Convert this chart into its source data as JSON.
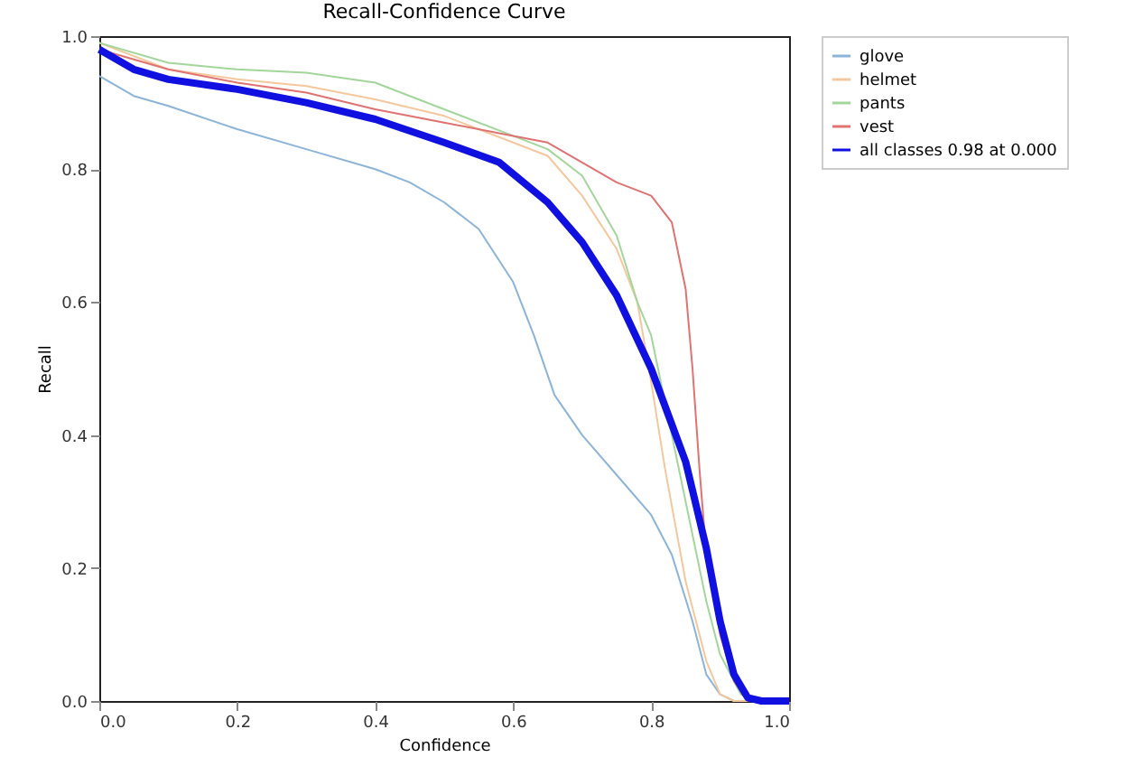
{
  "chart_data": {
    "type": "line",
    "title": "Recall-Confidence Curve",
    "xlabel": "Confidence",
    "ylabel": "Recall",
    "xlim": [
      0,
      1
    ],
    "ylim": [
      0,
      1
    ],
    "xticks": [
      {
        "value": 0,
        "label": "0.0"
      },
      0.2,
      0.4,
      0.6,
      0.8,
      {
        "value": 1,
        "label": "1.0"
      }
    ],
    "yticks": [
      {
        "value": 0,
        "label": "0.0"
      },
      0.2,
      0.4,
      0.6,
      0.8,
      {
        "value": 1,
        "label": "1.0"
      }
    ],
    "grid": false,
    "legend": "right",
    "marker": "none",
    "line_style": "solid",
    "series": [
      {
        "name": "glove",
        "color": "#8cb4d8",
        "x": [
          0,
          0.05,
          0.1,
          0.2,
          0.3,
          0.4,
          0.45,
          0.5,
          0.55,
          0.6,
          0.63,
          0.66,
          0.7,
          0.75,
          0.8,
          0.83,
          0.86,
          0.88,
          0.9,
          0.92,
          1.0
        ],
        "values": [
          0.94,
          0.91,
          0.895,
          0.86,
          0.83,
          0.8,
          0.78,
          0.75,
          0.71,
          0.63,
          0.55,
          0.46,
          0.4,
          0.34,
          0.28,
          0.22,
          0.12,
          0.04,
          0.01,
          0,
          0
        ]
      },
      {
        "name": "helmet",
        "color": "#f5c79c",
        "x": [
          0,
          0.1,
          0.2,
          0.3,
          0.4,
          0.5,
          0.6,
          0.65,
          0.7,
          0.75,
          0.78,
          0.8,
          0.82,
          0.85,
          0.88,
          0.9,
          0.92,
          1.0
        ],
        "values": [
          0.99,
          0.95,
          0.935,
          0.925,
          0.905,
          0.88,
          0.84,
          0.82,
          0.76,
          0.68,
          0.6,
          0.48,
          0.35,
          0.18,
          0.06,
          0.01,
          0,
          0
        ]
      },
      {
        "name": "pants",
        "color": "#a3d69b",
        "x": [
          0,
          0.1,
          0.2,
          0.3,
          0.4,
          0.5,
          0.6,
          0.65,
          0.7,
          0.75,
          0.78,
          0.8,
          0.83,
          0.86,
          0.88,
          0.9,
          0.93,
          0.95,
          1.0
        ],
        "values": [
          0.99,
          0.96,
          0.95,
          0.945,
          0.93,
          0.89,
          0.85,
          0.83,
          0.79,
          0.7,
          0.6,
          0.55,
          0.4,
          0.25,
          0.15,
          0.07,
          0.01,
          0,
          0
        ]
      },
      {
        "name": "vest",
        "color": "#e07272",
        "x": [
          0,
          0.1,
          0.2,
          0.3,
          0.4,
          0.5,
          0.6,
          0.65,
          0.7,
          0.75,
          0.8,
          0.83,
          0.85,
          0.86,
          0.87,
          0.88,
          0.9,
          0.92,
          0.94,
          1.0
        ],
        "values": [
          0.98,
          0.95,
          0.93,
          0.915,
          0.89,
          0.87,
          0.85,
          0.84,
          0.81,
          0.78,
          0.76,
          0.72,
          0.62,
          0.5,
          0.35,
          0.22,
          0.1,
          0.03,
          0,
          0
        ]
      },
      {
        "name": "all classes 0.98 at 0.000",
        "color": "#1010e0",
        "x": [
          0,
          0.05,
          0.1,
          0.2,
          0.3,
          0.4,
          0.5,
          0.58,
          0.65,
          0.7,
          0.75,
          0.8,
          0.85,
          0.88,
          0.9,
          0.92,
          0.94,
          0.96,
          1.0
        ],
        "values": [
          0.98,
          0.95,
          0.935,
          0.92,
          0.9,
          0.875,
          0.84,
          0.81,
          0.75,
          0.69,
          0.61,
          0.5,
          0.36,
          0.23,
          0.12,
          0.04,
          0.005,
          0,
          0
        ]
      }
    ]
  }
}
